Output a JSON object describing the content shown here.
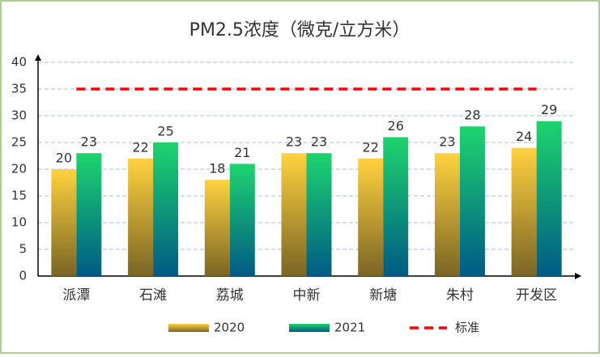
{
  "chart_data": {
    "type": "bar",
    "title": "PM2.5浓度（微克/立方米）",
    "categories": [
      "派潭",
      "石滩",
      "荔城",
      "中新",
      "新塘",
      "朱村",
      "开发区"
    ],
    "series": [
      {
        "name": "2020",
        "color": "#ffd23f",
        "values": [
          20,
          22,
          18,
          23,
          22,
          23,
          24
        ]
      },
      {
        "name": "2021",
        "color": "#1ed46e",
        "values": [
          23,
          25,
          21,
          23,
          26,
          28,
          29
        ]
      },
      {
        "name": "标准",
        "type": "line",
        "color": "#ff0000",
        "values": [
          35,
          35,
          35,
          35,
          35,
          35,
          35
        ]
      }
    ],
    "ylim": [
      0,
      40
    ],
    "yticks": [
      0,
      5,
      10,
      15,
      20,
      25,
      30,
      35,
      40
    ],
    "grid": true,
    "legend": "bottom"
  }
}
